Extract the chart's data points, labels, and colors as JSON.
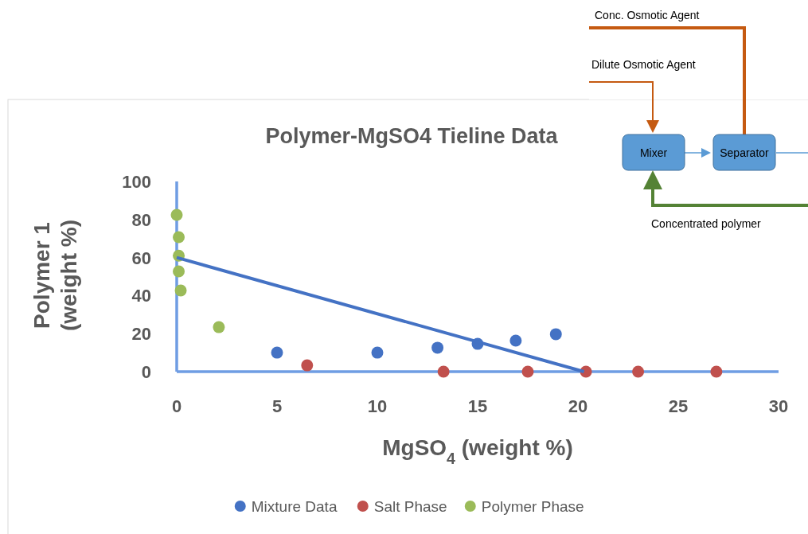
{
  "chart_data": {
    "type": "scatter",
    "title": "Polymer-MgSO4 Tieline Data",
    "xlabel": "MgSO$_{4}$ (weight %)",
    "ylabel": "Polymer 1\n(weight %)",
    "xlim": [
      0,
      30
    ],
    "xticks": [
      0,
      5,
      10,
      15,
      20,
      25,
      30
    ],
    "ylim": [
      0,
      100
    ],
    "yticks": [
      0,
      20,
      40,
      60,
      80,
      100
    ],
    "grid": false,
    "legend": "bottom",
    "marker": "circle",
    "series": [
      {
        "name": "Mixture Data",
        "color": "#4472c4",
        "x": [
          5,
          10,
          13,
          15,
          16.9,
          18.9
        ],
        "values": [
          10,
          10,
          12.6,
          14.6,
          16.3,
          19.7
        ]
      },
      {
        "name": "Salt Phase",
        "color": "#c0504d",
        "x": [
          6.5,
          13.3,
          17.5,
          20.4,
          23,
          26.9
        ],
        "values": [
          3.3,
          0,
          0,
          0,
          0,
          0
        ]
      },
      {
        "name": "Polymer Phase",
        "color": "#9bbb59",
        "x": [
          0,
          0.1,
          0.1,
          0.1,
          0.2,
          2.1
        ],
        "values": [
          82.4,
          70.7,
          61,
          52.7,
          42.7,
          23.4
        ]
      },
      {
        "type": "line",
        "color": "#4472c4",
        "line_style": "solid",
        "marker": "none",
        "x": [
          0,
          20.3
        ],
        "values": [
          60,
          0
        ]
      }
    ],
    "annotations": [
      "Conc. Osmotic Agent",
      "Dilute Osmotic Agent",
      "Mixer",
      "Separator",
      "Concentrated polymer"
    ]
  }
}
